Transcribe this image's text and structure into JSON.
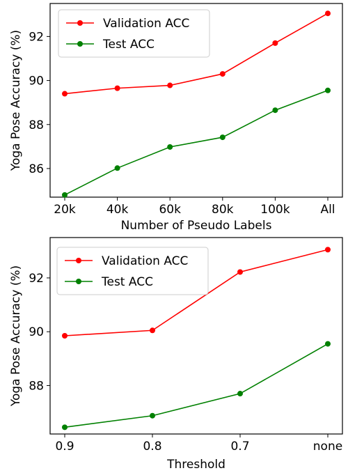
{
  "chart_data": [
    {
      "type": "line",
      "categories": [
        "20k",
        "40k",
        "60k",
        "80k",
        "100k",
        "All"
      ],
      "xlabel": "Number of Pseudo Labels",
      "ylabel": "Yoga Pose Accuracy (%)",
      "ylim": [
        84.7,
        93.5
      ],
      "yticks": [
        86,
        88,
        90,
        92
      ],
      "grid": false,
      "legend_position": "top-left",
      "series": [
        {
          "name": "Validation ACC",
          "color": "#ff0000",
          "values": [
            89.4,
            89.65,
            89.78,
            90.3,
            91.7,
            93.05
          ]
        },
        {
          "name": "Test ACC",
          "color": "#008000",
          "values": [
            84.8,
            86.02,
            86.98,
            87.42,
            88.65,
            89.55
          ]
        }
      ]
    },
    {
      "type": "line",
      "categories": [
        "0.9",
        "0.8",
        "0.7",
        "none"
      ],
      "xlabel": "Threshold",
      "ylabel": "Yoga Pose Accuracy (%)",
      "ylim": [
        86.2,
        93.5
      ],
      "yticks": [
        88,
        90,
        92
      ],
      "grid": false,
      "legend_position": "top-left",
      "series": [
        {
          "name": "Validation ACC",
          "color": "#ff0000",
          "values": [
            89.85,
            90.05,
            92.22,
            93.05
          ]
        },
        {
          "name": "Test ACC",
          "color": "#008000",
          "values": [
            86.45,
            86.88,
            87.7,
            89.55
          ]
        }
      ]
    }
  ]
}
